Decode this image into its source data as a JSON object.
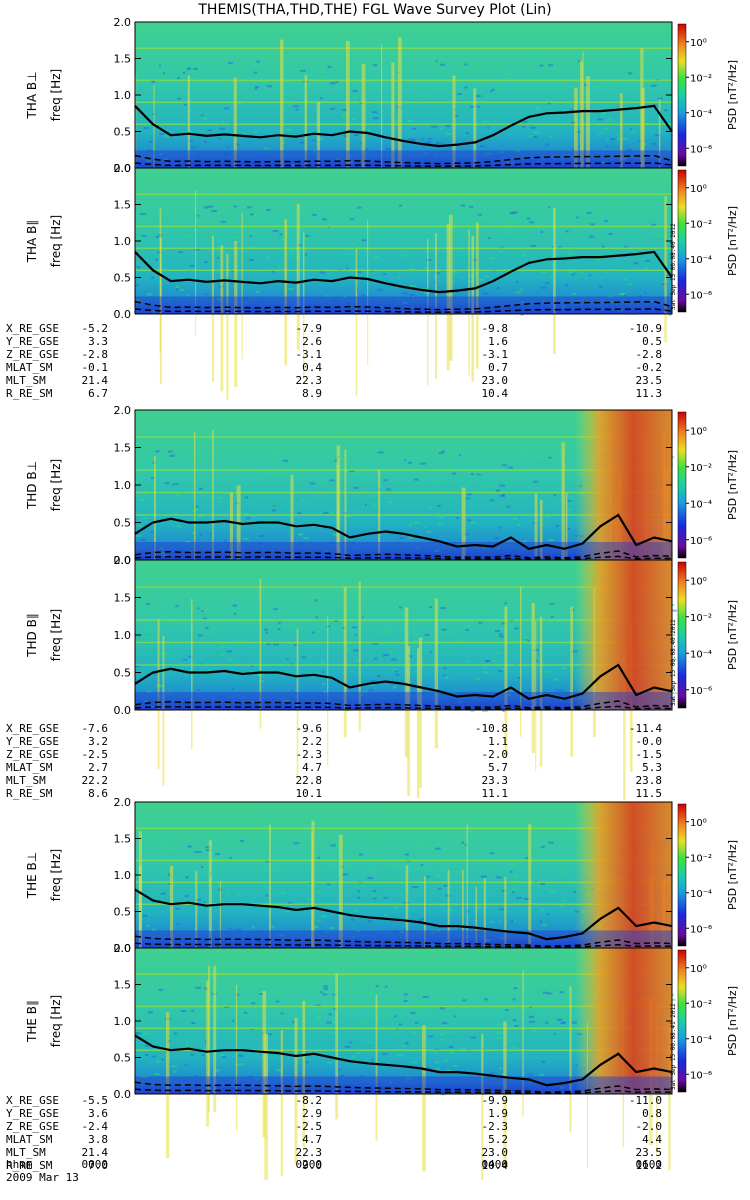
{
  "title": "THEMIS(THA,THD,THE) FGL Wave Survey Plot (Lin)",
  "colors": {
    "line": "#000000",
    "frame": "#000000"
  },
  "chart_data": {
    "type": "heatmap",
    "title": "THEMIS(THA,THD,THE) FGL Wave Survey Plot (Lin)",
    "x_ticks": [
      "0000",
      "0200",
      "0400",
      "0600"
    ],
    "date_label": "2009 Mar 13",
    "ylabel": "freq [Hz]",
    "ylim": [
      0,
      2.0
    ],
    "y_ticks": [
      "0.0",
      "0.5",
      "1.0",
      "1.5",
      "2.0"
    ],
    "colorbar_label": "PSD [nT²/Hz]",
    "colorbar_ticks": [
      "10⁰",
      "10⁻²",
      "10⁻⁴",
      "10⁻⁶"
    ],
    "colorbar_tick_values": [
      0,
      -2,
      -4,
      -6
    ],
    "panels": [
      {
        "probe": "THA",
        "label": "THA B⊥",
        "gyro": [
          0.85,
          0.6,
          0.45,
          0.47,
          0.44,
          0.46,
          0.44,
          0.42,
          0.45,
          0.43,
          0.47,
          0.45,
          0.5,
          0.48,
          0.42,
          0.37,
          0.33,
          0.3,
          0.32,
          0.35,
          0.45,
          0.58,
          0.7,
          0.75,
          0.76,
          0.78,
          0.78,
          0.8,
          0.82,
          0.85,
          0.5
        ],
        "hot": 0
      },
      {
        "probe": "THA",
        "label": "THA B∥",
        "stamp": "Sat Sep 15 06:08:40 2012",
        "gyro": [
          0.85,
          0.6,
          0.45,
          0.47,
          0.44,
          0.46,
          0.44,
          0.42,
          0.45,
          0.43,
          0.47,
          0.45,
          0.5,
          0.48,
          0.42,
          0.37,
          0.33,
          0.3,
          0.32,
          0.35,
          0.45,
          0.58,
          0.7,
          0.75,
          0.76,
          0.78,
          0.78,
          0.8,
          0.82,
          0.85,
          0.5
        ],
        "hot": 0
      },
      {
        "probe": "THD",
        "label": "THD B⊥",
        "gyro": [
          0.35,
          0.5,
          0.55,
          0.5,
          0.5,
          0.52,
          0.48,
          0.5,
          0.5,
          0.45,
          0.47,
          0.43,
          0.3,
          0.35,
          0.38,
          0.35,
          0.3,
          0.25,
          0.18,
          0.2,
          0.18,
          0.3,
          0.15,
          0.2,
          0.15,
          0.22,
          0.45,
          0.6,
          0.2,
          0.3,
          0.25
        ],
        "hot": 0.82
      },
      {
        "probe": "THD",
        "label": "THD B∥",
        "stamp": "Sat Sep 15 06:08:40 2012",
        "gyro": [
          0.35,
          0.5,
          0.55,
          0.5,
          0.5,
          0.52,
          0.48,
          0.5,
          0.5,
          0.45,
          0.47,
          0.43,
          0.3,
          0.35,
          0.38,
          0.35,
          0.3,
          0.25,
          0.18,
          0.2,
          0.18,
          0.3,
          0.15,
          0.2,
          0.15,
          0.22,
          0.45,
          0.6,
          0.2,
          0.3,
          0.25
        ],
        "hot": 0.82
      },
      {
        "probe": "THE",
        "label": "THE B⊥",
        "gyro": [
          0.8,
          0.65,
          0.6,
          0.62,
          0.58,
          0.6,
          0.6,
          0.58,
          0.56,
          0.52,
          0.55,
          0.5,
          0.45,
          0.42,
          0.4,
          0.38,
          0.35,
          0.3,
          0.3,
          0.28,
          0.25,
          0.22,
          0.2,
          0.12,
          0.15,
          0.2,
          0.4,
          0.55,
          0.3,
          0.35,
          0.3
        ],
        "hot": 0.82
      },
      {
        "probe": "THE",
        "label": "THE B∥",
        "stamp": "Sat Sep 15 06:08:41 2012",
        "gyro": [
          0.8,
          0.65,
          0.6,
          0.62,
          0.58,
          0.6,
          0.6,
          0.58,
          0.56,
          0.52,
          0.55,
          0.5,
          0.45,
          0.42,
          0.4,
          0.38,
          0.35,
          0.3,
          0.3,
          0.28,
          0.25,
          0.22,
          0.2,
          0.12,
          0.15,
          0.2,
          0.4,
          0.55,
          0.3,
          0.35,
          0.3
        ],
        "hot": 0.82
      }
    ]
  },
  "ephemeris": [
    {
      "probe": "THA",
      "rows": [
        {
          "label": "X_RE_GSE",
          "values": [
            "-5.2",
            "-7.9",
            "-9.8",
            "-10.9"
          ]
        },
        {
          "label": "Y_RE_GSE",
          "values": [
            "3.3",
            "2.6",
            "1.6",
            "0.5"
          ]
        },
        {
          "label": "Z_RE_GSE",
          "values": [
            "-2.8",
            "-3.1",
            "-3.1",
            "-2.8"
          ]
        },
        {
          "label": "MLAT_SM",
          "values": [
            "-0.1",
            "0.4",
            "0.7",
            "-0.2"
          ]
        },
        {
          "label": "MLT_SM",
          "values": [
            "21.4",
            "22.3",
            "23.0",
            "23.5"
          ]
        },
        {
          "label": "R_RE_SM",
          "values": [
            "6.7",
            "8.9",
            "10.4",
            "11.3"
          ]
        }
      ]
    },
    {
      "probe": "THD",
      "rows": [
        {
          "label": "X_RE_GSE",
          "values": [
            "-7.6",
            "-9.6",
            "-10.8",
            "-11.4"
          ]
        },
        {
          "label": "Y_RE_GSE",
          "values": [
            "3.2",
            "2.2",
            "1.1",
            "-0.0"
          ]
        },
        {
          "label": "Z_RE_GSE",
          "values": [
            "-2.5",
            "-2.3",
            "-2.0",
            "-1.5"
          ]
        },
        {
          "label": "MLAT_SM",
          "values": [
            "2.7",
            "4.7",
            "5.7",
            "5.3"
          ]
        },
        {
          "label": "MLT_SM",
          "values": [
            "22.2",
            "22.8",
            "23.3",
            "23.8"
          ]
        },
        {
          "label": "R_RE_SM",
          "values": [
            "8.6",
            "10.1",
            "11.1",
            "11.5"
          ]
        }
      ]
    },
    {
      "probe": "THE",
      "rows": [
        {
          "label": "X_RE_GSE",
          "values": [
            "-5.5",
            "-8.2",
            "-9.9",
            "-11.0"
          ]
        },
        {
          "label": "Y_RE_GSE",
          "values": [
            "3.6",
            "2.9",
            "1.9",
            "0.8"
          ]
        },
        {
          "label": "Z_RE_GSE",
          "values": [
            "-2.4",
            "-2.5",
            "-2.3",
            "-2.0"
          ]
        },
        {
          "label": "MLAT_SM",
          "values": [
            "3.8",
            "4.7",
            "5.2",
            "4.4"
          ]
        },
        {
          "label": "MLT_SM",
          "values": [
            "21.4",
            "22.3",
            "23.0",
            "23.5"
          ]
        },
        {
          "label": "R_RE_SM",
          "values": [
            "7.0",
            "9.0",
            "10.4",
            "11.2"
          ]
        }
      ]
    }
  ],
  "footer": {
    "label": "hhmm",
    "times": [
      "0000",
      "0200",
      "0400",
      "0600"
    ],
    "date": "2009 Mar 13"
  }
}
